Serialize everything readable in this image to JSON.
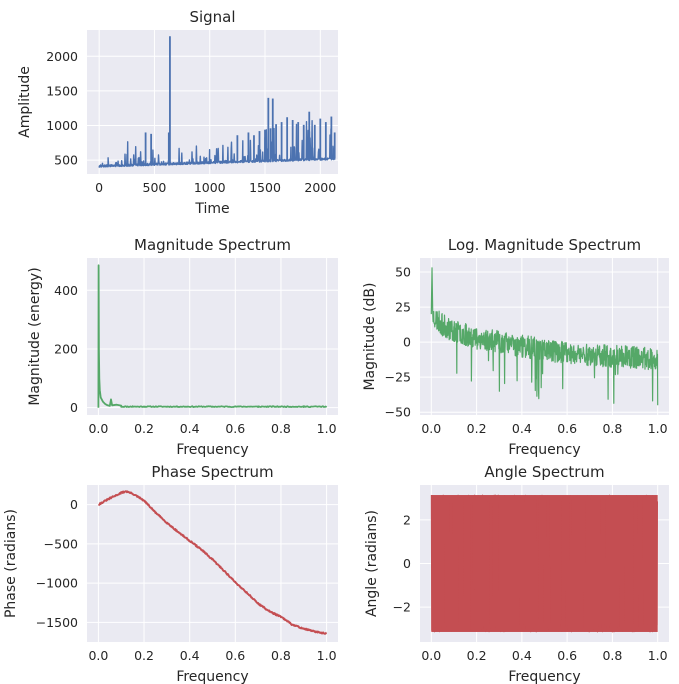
{
  "chart_data": [
    {
      "id": "signal",
      "type": "line",
      "title": "Signal",
      "xlabel": "Time",
      "ylabel": "Amplitude",
      "xlim": [
        -110,
        2160
      ],
      "ylim": [
        300,
        2380
      ],
      "xticks": [
        0,
        500,
        1000,
        1500,
        2000
      ],
      "yticks": [
        500,
        1000,
        1500,
        2000
      ],
      "grid": true,
      "color": "#4c72b0",
      "series": [
        {
          "x": [
            0,
            20,
            40,
            60,
            80,
            100,
            150,
            200,
            230,
            260,
            300,
            350,
            400,
            420,
            440,
            470,
            500,
            550,
            600,
            630,
            640,
            660,
            700,
            750,
            800,
            850,
            900,
            950,
            1000,
            1050,
            1100,
            1150,
            1200,
            1250,
            1300,
            1350,
            1400,
            1450,
            1500,
            1530,
            1550,
            1570,
            1600,
            1650,
            1700,
            1750,
            1800,
            1850,
            1900,
            1950,
            2000,
            2050,
            2100,
            2130
          ],
          "y": [
            410,
            520,
            640,
            450,
            600,
            420,
            480,
            520,
            610,
            780,
            520,
            820,
            500,
            900,
            550,
            880,
            700,
            600,
            820,
            900,
            2290,
            600,
            760,
            620,
            660,
            700,
            720,
            700,
            780,
            700,
            820,
            760,
            760,
            860,
            780,
            900,
            860,
            920,
            940,
            1400,
            960,
            1390,
            1020,
            1050,
            1120,
            1080,
            1050,
            1010,
            1200,
            1010,
            1100,
            1050,
            1130,
            900
          ]
        }
      ]
    },
    {
      "id": "magnitude",
      "type": "line",
      "title": "Magnitude Spectrum",
      "xlabel": "Frequency",
      "ylabel": "Magnitude (energy)",
      "xlim": [
        -0.05,
        1.05
      ],
      "ylim": [
        -25,
        510
      ],
      "xticks": [
        0.0,
        0.2,
        0.4,
        0.6,
        0.8,
        1.0
      ],
      "xticklabels": [
        "0.0",
        "0.2",
        "0.4",
        "0.6",
        "0.8",
        "1.0"
      ],
      "yticks": [
        0,
        200,
        400
      ],
      "grid": true,
      "color": "#55a868",
      "series": [
        {
          "x": [
            0.0,
            0.001,
            0.002,
            0.004,
            0.006,
            0.01,
            0.02,
            0.03,
            0.04,
            0.05,
            0.055,
            0.06,
            0.08,
            0.1,
            0.15,
            0.2,
            0.3,
            0.5,
            0.7,
            0.9,
            1.0
          ],
          "y": [
            0,
            485,
            200,
            100,
            60,
            35,
            20,
            12,
            8,
            6,
            28,
            8,
            10,
            7,
            5,
            4,
            3,
            3,
            2,
            2,
            2
          ]
        }
      ]
    },
    {
      "id": "log_magnitude",
      "type": "line",
      "title": "Log. Magnitude Spectrum",
      "xlabel": "Frequency",
      "ylabel": "Magnitude (dB)",
      "xlim": [
        -0.05,
        1.05
      ],
      "ylim": [
        -52,
        60
      ],
      "xticks": [
        0.0,
        0.2,
        0.4,
        0.6,
        0.8,
        1.0
      ],
      "xticklabels": [
        "0.0",
        "0.2",
        "0.4",
        "0.6",
        "0.8",
        "1.0"
      ],
      "yticks": [
        -50,
        -25,
        0,
        25,
        50
      ],
      "grid": true,
      "color": "#55a868",
      "trend": {
        "x": [
          0.0,
          0.05,
          0.1,
          0.2,
          0.3,
          0.4,
          0.5,
          0.6,
          0.7,
          0.8,
          0.9,
          1.0
        ],
        "y": [
          20,
          12,
          8,
          3,
          0,
          -3,
          -5,
          -8,
          -9,
          -10,
          -11,
          -12
        ]
      },
      "peak": {
        "x": 0.003,
        "y": 53
      }
    },
    {
      "id": "phase",
      "type": "line",
      "title": "Phase Spectrum",
      "xlabel": "Frequency",
      "ylabel": "Phase (radians)",
      "xlim": [
        -0.05,
        1.05
      ],
      "ylim": [
        -1750,
        250
      ],
      "xticks": [
        0.0,
        0.2,
        0.4,
        0.6,
        0.8,
        1.0
      ],
      "xticklabels": [
        "0.0",
        "0.2",
        "0.4",
        "0.6",
        "0.8",
        "1.0"
      ],
      "yticks": [
        -1500,
        -1000,
        -500,
        0
      ],
      "grid": true,
      "color": "#c44e52",
      "series": [
        {
          "x": [
            0.0,
            0.05,
            0.1,
            0.12,
            0.15,
            0.2,
            0.25,
            0.3,
            0.35,
            0.4,
            0.45,
            0.5,
            0.55,
            0.6,
            0.65,
            0.7,
            0.75,
            0.8,
            0.85,
            0.9,
            0.95,
            1.0
          ],
          "y": [
            0,
            80,
            150,
            170,
            140,
            50,
            -100,
            -230,
            -350,
            -460,
            -570,
            -700,
            -840,
            -990,
            -1120,
            -1260,
            -1360,
            -1430,
            -1530,
            -1580,
            -1620,
            -1640
          ]
        }
      ]
    },
    {
      "id": "angle",
      "type": "area",
      "title": "Angle Spectrum",
      "xlabel": "Frequency",
      "ylabel": "Angle (radians)",
      "xlim": [
        -0.05,
        1.05
      ],
      "ylim": [
        -3.6,
        3.6
      ],
      "xticks": [
        0.0,
        0.2,
        0.4,
        0.6,
        0.8,
        1.0
      ],
      "xticklabels": [
        "0.0",
        "0.2",
        "0.4",
        "0.6",
        "0.8",
        "1.0"
      ],
      "yticks": [
        -2,
        0,
        2
      ],
      "grid": true,
      "color": "#c44e52",
      "band": [
        -3.14,
        3.14
      ]
    }
  ]
}
